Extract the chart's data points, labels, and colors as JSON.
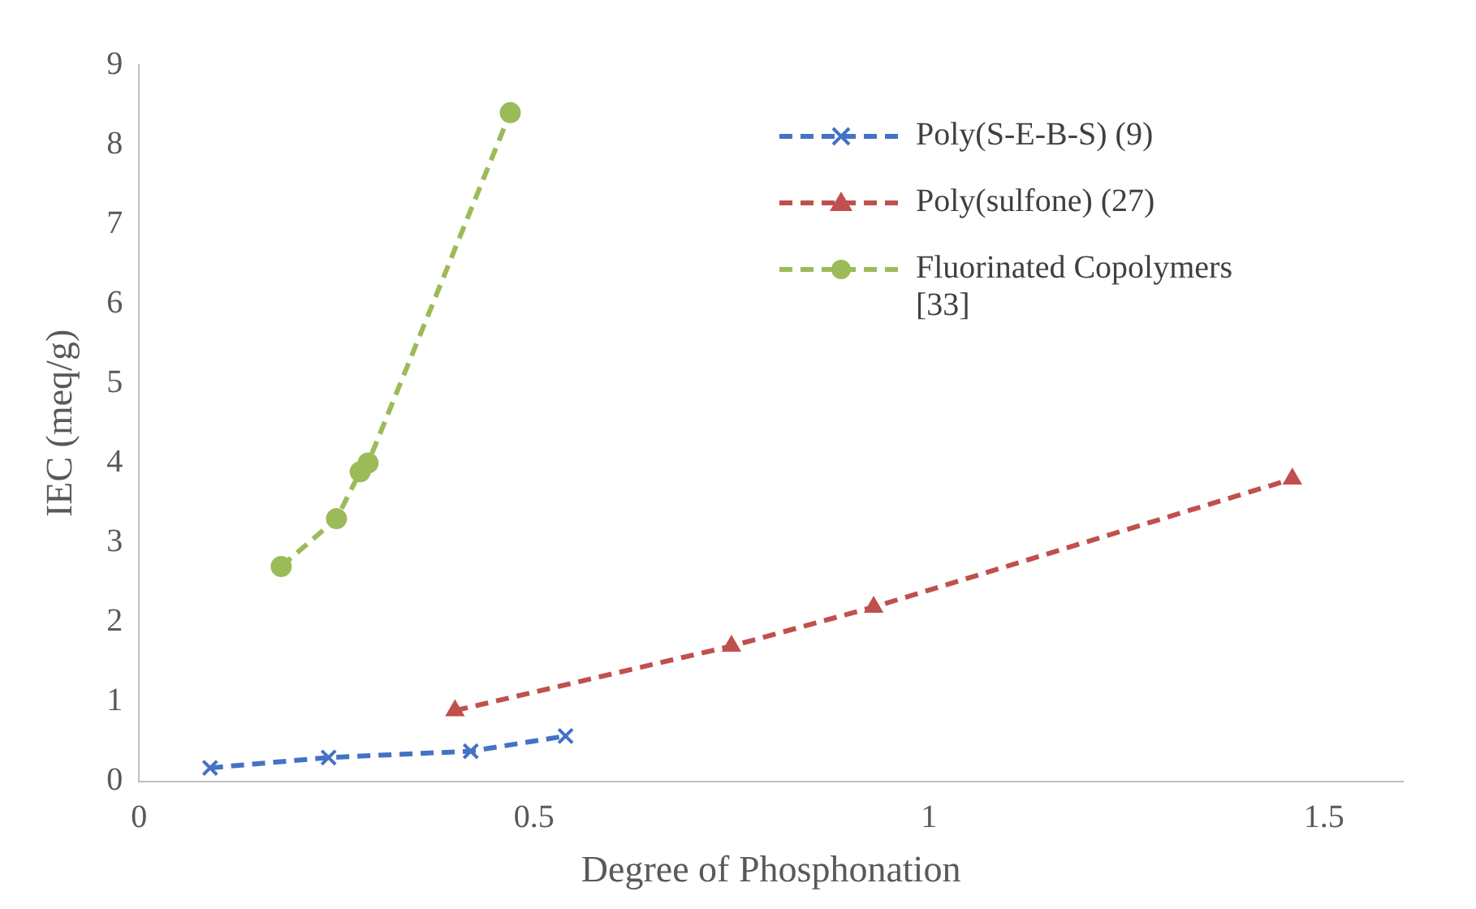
{
  "chart_data": {
    "type": "line",
    "xlabel": "Degree of Phosphonation",
    "ylabel": "IEC (meq/g)",
    "xlim": [
      0,
      1.6
    ],
    "xticks": [
      0,
      0.5,
      1,
      1.5
    ],
    "ylim": [
      0,
      9
    ],
    "yticks": [
      0,
      1,
      2,
      3,
      4,
      5,
      6,
      7,
      8,
      9
    ],
    "grid": false,
    "legend": "top right",
    "line_style": "dashed",
    "series": [
      {
        "name": "Poly(S-E-B-S) (9)",
        "color": "#4472c4",
        "marker": "cross",
        "x": [
          0.09,
          0.24,
          0.42,
          0.54
        ],
        "values": [
          0.17,
          0.3,
          0.38,
          0.57
        ]
      },
      {
        "name": "Poly(sulfone) (27)",
        "color": "#c0504d",
        "marker": "triangle",
        "x": [
          0.4,
          0.75,
          0.93,
          1.46
        ],
        "values": [
          0.89,
          1.7,
          2.19,
          3.8
        ]
      },
      {
        "name": "Fluorinated Copolymers [33]",
        "color": "#9bbb59",
        "marker": "circle",
        "x": [
          0.18,
          0.25,
          0.28,
          0.29,
          0.47
        ],
        "values": [
          2.7,
          3.3,
          3.89,
          4.0,
          8.4
        ]
      }
    ]
  }
}
